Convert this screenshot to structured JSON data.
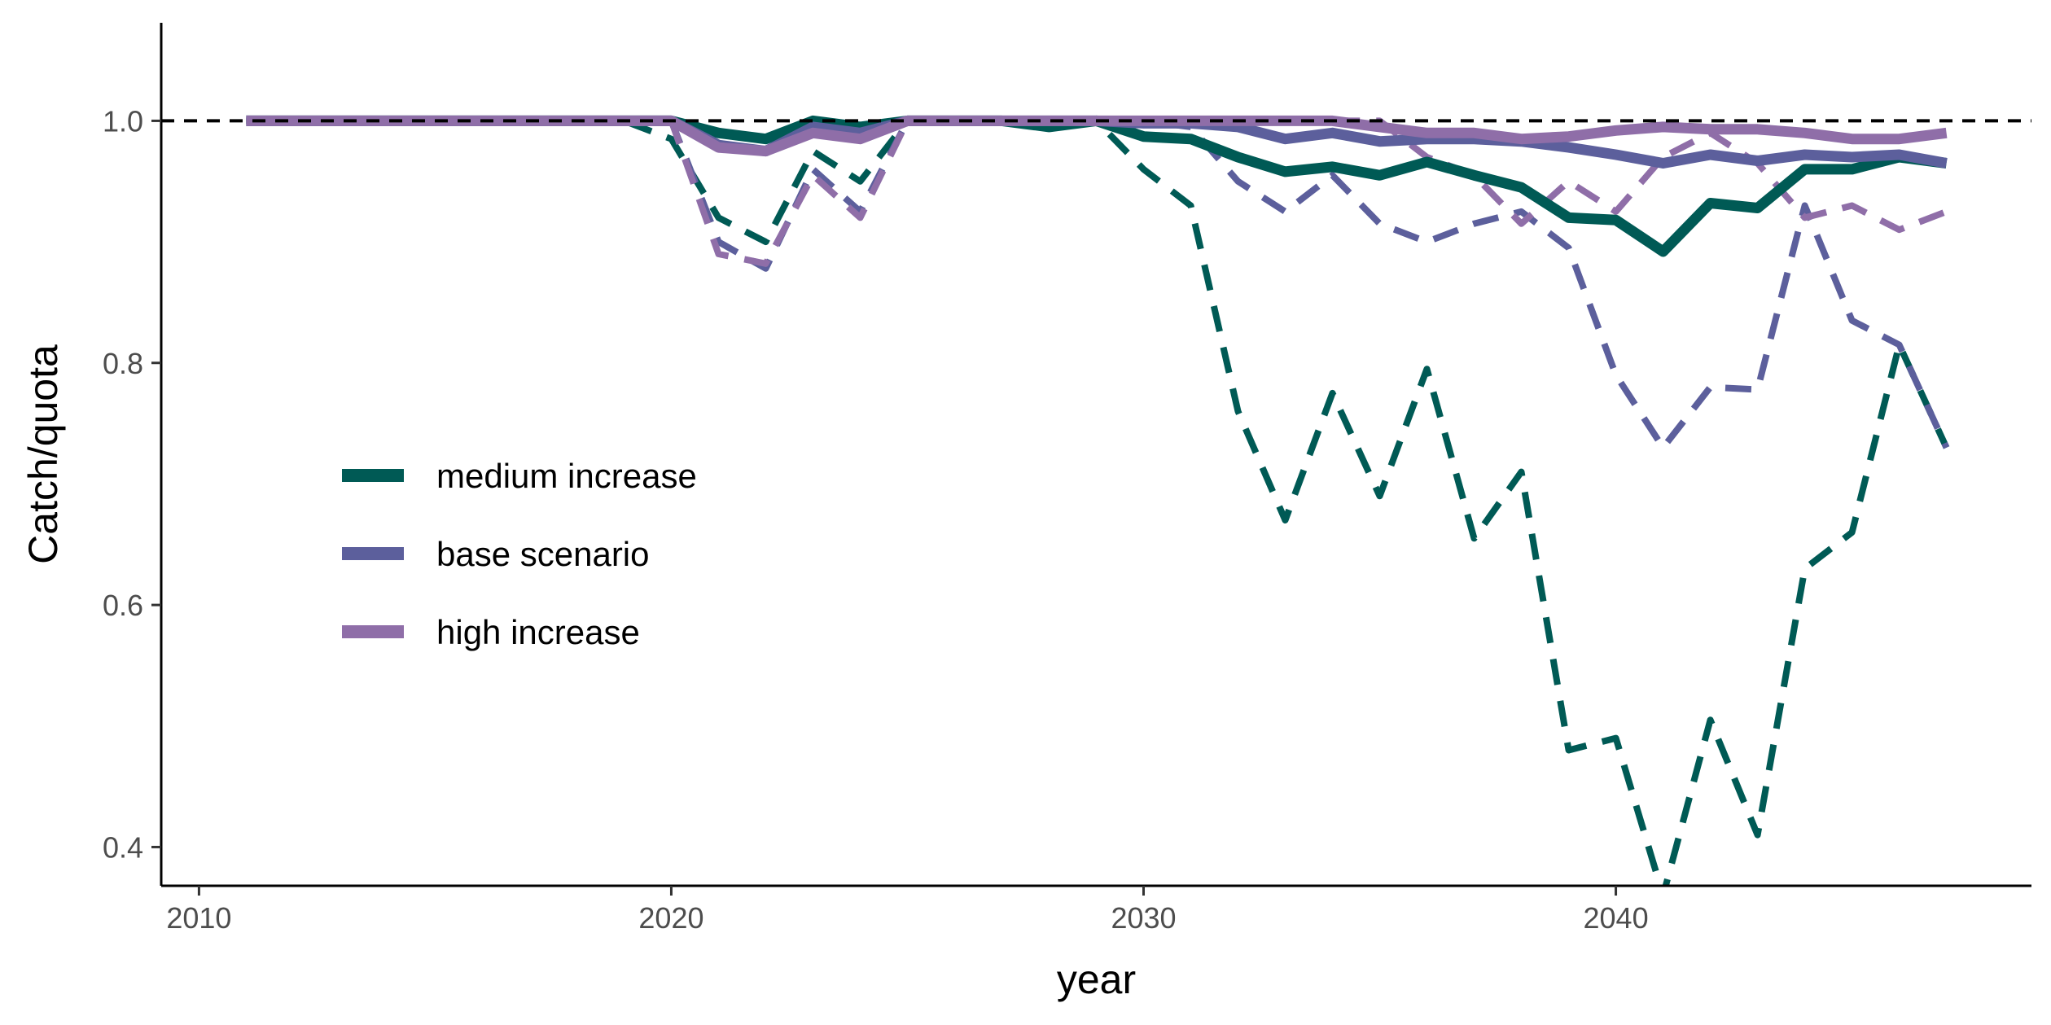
{
  "chart_data": {
    "type": "line",
    "title": "",
    "xlabel": "year",
    "ylabel": "Catch/quota",
    "xlim": [
      2009.2,
      2048.8
    ],
    "ylim": [
      0.368,
      1.081
    ],
    "x_ticks": [
      2010,
      2020,
      2030,
      2040
    ],
    "y_ticks": [
      0.4,
      0.6,
      0.8,
      1.0
    ],
    "y_tick_labels": [
      "0.4",
      "0.6",
      "0.8",
      "1.0"
    ],
    "x_tick_labels": [
      "2010",
      "2020",
      "2030",
      "2040"
    ],
    "reference_line": {
      "y": 1.0,
      "style": "dashed",
      "color": "#000000"
    },
    "grid": false,
    "legend_position": "left-middle",
    "colors": {
      "medium increase": "#005a55",
      "base scenario": "#5c5f9c",
      "high increase": "#8f6ea8"
    },
    "series": [
      {
        "name": "medium increase",
        "style": "solid",
        "x": [
          2011,
          2012,
          2013,
          2014,
          2015,
          2016,
          2017,
          2018,
          2019,
          2020,
          2021,
          2022,
          2023,
          2024,
          2025,
          2026,
          2027,
          2028,
          2029,
          2030,
          2031,
          2032,
          2033,
          2034,
          2035,
          2036,
          2037,
          2038,
          2039,
          2040,
          2041,
          2042,
          2043,
          2044,
          2045,
          2046,
          2047
        ],
        "y": [
          1.0,
          1.0,
          1.0,
          1.0,
          1.0,
          1.0,
          1.0,
          1.0,
          1.0,
          1.0,
          0.99,
          0.985,
          1.0,
          0.995,
          1.0,
          1.0,
          1.0,
          0.995,
          1.0,
          0.987,
          0.985,
          0.97,
          0.958,
          0.962,
          0.955,
          0.966,
          0.955,
          0.945,
          0.92,
          0.918,
          0.892,
          0.932,
          0.928,
          0.96,
          0.96,
          0.97,
          0.965
        ]
      },
      {
        "name": "medium increase",
        "style": "dashed",
        "x": [
          2011,
          2012,
          2013,
          2014,
          2015,
          2016,
          2017,
          2018,
          2019,
          2020,
          2021,
          2022,
          2023,
          2024,
          2025,
          2026,
          2027,
          2028,
          2029,
          2030,
          2031,
          2032,
          2033,
          2034,
          2035,
          2036,
          2037,
          2038,
          2039,
          2040,
          2041,
          2042,
          2043,
          2044,
          2045,
          2046,
          2047
        ],
        "y": [
          1.0,
          1.0,
          1.0,
          1.0,
          1.0,
          1.0,
          1.0,
          1.0,
          1.0,
          0.985,
          0.92,
          0.9,
          0.975,
          0.95,
          1.0,
          1.0,
          1.0,
          1.0,
          1.0,
          0.96,
          0.93,
          0.76,
          0.67,
          0.775,
          0.69,
          0.795,
          0.655,
          0.71,
          0.48,
          0.49,
          0.36,
          0.505,
          0.41,
          0.63,
          0.66,
          0.815,
          0.73
        ]
      },
      {
        "name": "base scenario",
        "style": "solid",
        "x": [
          2011,
          2012,
          2013,
          2014,
          2015,
          2016,
          2017,
          2018,
          2019,
          2020,
          2021,
          2022,
          2023,
          2024,
          2025,
          2026,
          2027,
          2028,
          2029,
          2030,
          2031,
          2032,
          2033,
          2034,
          2035,
          2036,
          2037,
          2038,
          2039,
          2040,
          2041,
          2042,
          2043,
          2044,
          2045,
          2046,
          2047
        ],
        "y": [
          1.0,
          1.0,
          1.0,
          1.0,
          1.0,
          1.0,
          1.0,
          1.0,
          1.0,
          1.0,
          0.98,
          0.975,
          0.995,
          0.99,
          1.0,
          1.0,
          1.0,
          1.0,
          1.0,
          0.998,
          0.998,
          0.995,
          0.985,
          0.99,
          0.983,
          0.985,
          0.985,
          0.983,
          0.978,
          0.972,
          0.965,
          0.972,
          0.967,
          0.972,
          0.97,
          0.972,
          0.965
        ]
      },
      {
        "name": "base scenario",
        "style": "dashed",
        "x": [
          2011,
          2012,
          2013,
          2014,
          2015,
          2016,
          2017,
          2018,
          2019,
          2020,
          2021,
          2022,
          2023,
          2024,
          2025,
          2026,
          2027,
          2028,
          2029,
          2030,
          2031,
          2032,
          2033,
          2034,
          2035,
          2036,
          2037,
          2038,
          2039,
          2040,
          2041,
          2042,
          2043,
          2044,
          2045,
          2046,
          2047
        ],
        "y": [
          1.0,
          1.0,
          1.0,
          1.0,
          1.0,
          1.0,
          1.0,
          1.0,
          1.0,
          1.0,
          0.9,
          0.878,
          0.96,
          0.925,
          1.0,
          1.0,
          1.0,
          1.0,
          1.0,
          1.0,
          0.995,
          0.95,
          0.925,
          0.955,
          0.915,
          0.9,
          0.915,
          0.925,
          0.895,
          0.79,
          0.73,
          0.78,
          0.778,
          0.93,
          0.835,
          0.815,
          0.73
        ]
      },
      {
        "name": "high increase",
        "style": "solid",
        "x": [
          2011,
          2012,
          2013,
          2014,
          2015,
          2016,
          2017,
          2018,
          2019,
          2020,
          2021,
          2022,
          2023,
          2024,
          2025,
          2026,
          2027,
          2028,
          2029,
          2030,
          2031,
          2032,
          2033,
          2034,
          2035,
          2036,
          2037,
          2038,
          2039,
          2040,
          2041,
          2042,
          2043,
          2044,
          2045,
          2046,
          2047
        ],
        "y": [
          1.0,
          1.0,
          1.0,
          1.0,
          1.0,
          1.0,
          1.0,
          1.0,
          1.0,
          1.0,
          0.978,
          0.975,
          0.99,
          0.985,
          1.0,
          1.0,
          1.0,
          1.0,
          1.0,
          1.0,
          1.0,
          1.0,
          1.0,
          1.0,
          0.995,
          0.99,
          0.99,
          0.985,
          0.987,
          0.992,
          0.995,
          0.993,
          0.993,
          0.99,
          0.985,
          0.985,
          0.99
        ]
      },
      {
        "name": "high increase",
        "style": "dashed",
        "x": [
          2011,
          2012,
          2013,
          2014,
          2015,
          2016,
          2017,
          2018,
          2019,
          2020,
          2021,
          2022,
          2023,
          2024,
          2025,
          2026,
          2027,
          2028,
          2029,
          2030,
          2031,
          2032,
          2033,
          2034,
          2035,
          2036,
          2037,
          2038,
          2039,
          2040,
          2041,
          2042,
          2043,
          2044,
          2045,
          2046,
          2047
        ],
        "y": [
          1.0,
          1.0,
          1.0,
          1.0,
          1.0,
          1.0,
          1.0,
          1.0,
          1.0,
          1.0,
          0.89,
          0.882,
          0.955,
          0.92,
          1.0,
          1.0,
          1.0,
          1.0,
          1.0,
          1.0,
          1.0,
          1.0,
          1.0,
          1.0,
          1.0,
          0.97,
          0.955,
          0.915,
          0.95,
          0.925,
          0.97,
          0.99,
          0.965,
          0.92,
          0.93,
          0.91,
          0.925
        ]
      }
    ],
    "legend": [
      {
        "label": "medium increase",
        "color": "#005a55"
      },
      {
        "label": "base scenario",
        "color": "#5c5f9c"
      },
      {
        "label": "high increase",
        "color": "#8f6ea8"
      }
    ]
  }
}
